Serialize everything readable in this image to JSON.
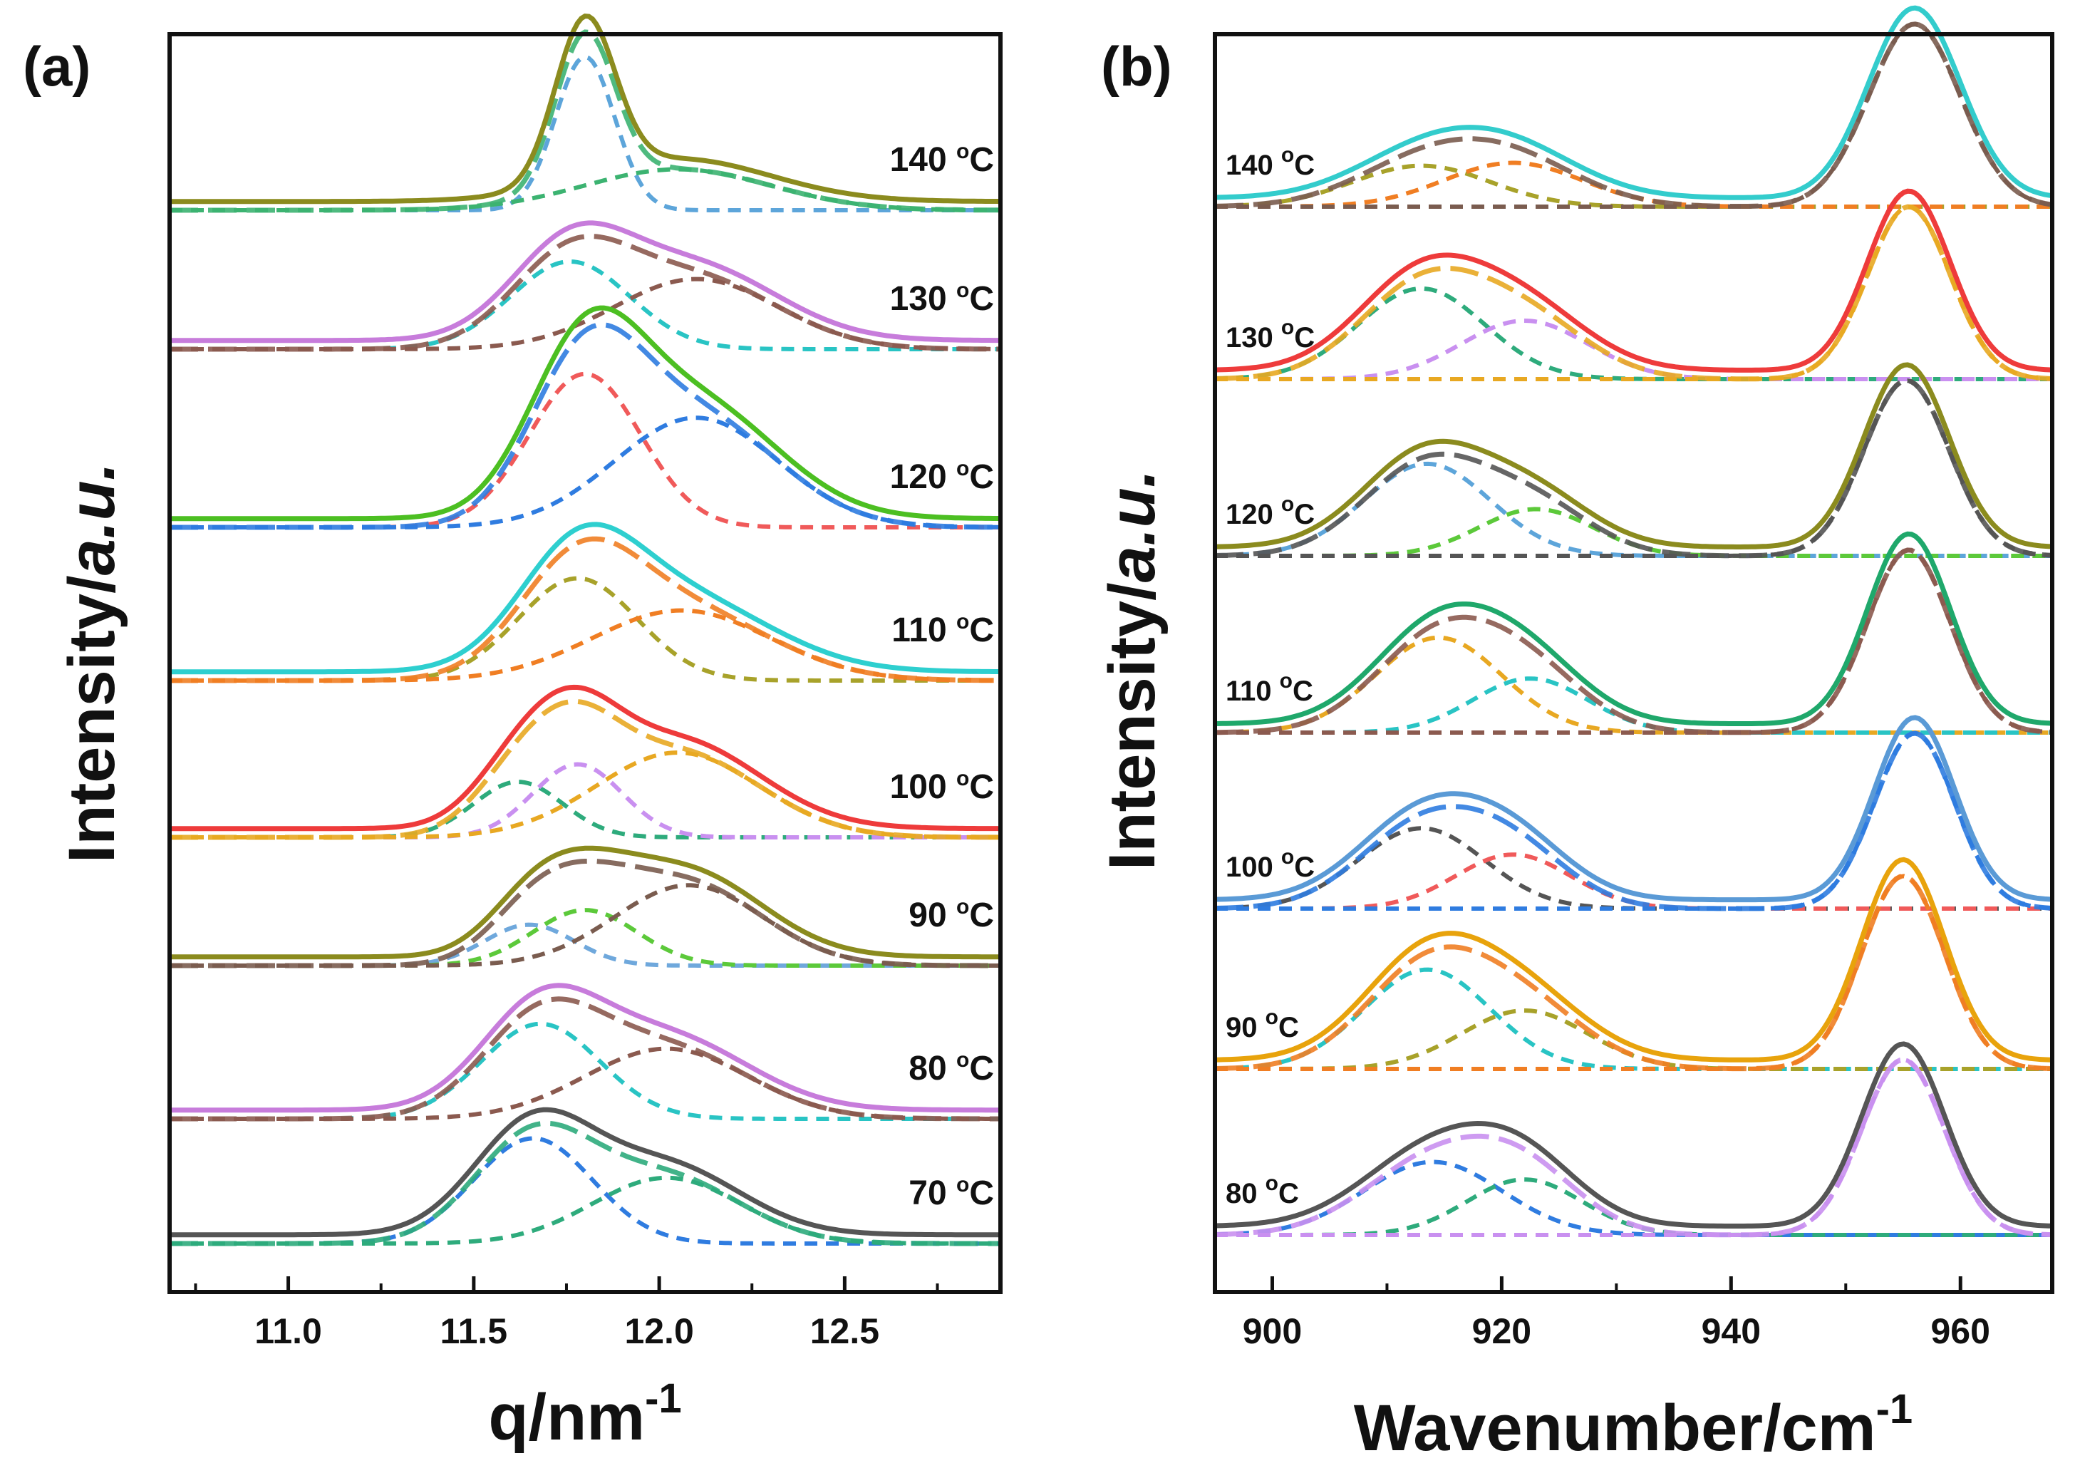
{
  "chart_data": [
    {
      "panel": "(a)",
      "type": "line",
      "xlabel": "q/nm",
      "xlabel_superscript": "-1",
      "ylabel_prefix": "Intensity/",
      "ylabel_italic": "a.u.",
      "xlim": [
        10.68,
        12.92
      ],
      "xticks": [
        "11.0",
        "11.5",
        "12.0",
        "12.5"
      ],
      "xtick_values": [
        11.0,
        11.5,
        12.0,
        12.5
      ],
      "series": [
        {
          "temp": "140",
          "unit": "C",
          "color": "#8B8B1E",
          "baseline": 0.84,
          "components": [
            {
              "center": 11.8,
              "width": 0.08,
              "height": 1.05,
              "color": "#5DA5DA"
            },
            {
              "center": 12.05,
              "width": 0.25,
              "height": 0.28,
              "color": "#3CB371"
            }
          ]
        },
        {
          "temp": "130",
          "unit": "C",
          "color": "#C77CDB",
          "baseline": 0.72,
          "components": [
            {
              "center": 11.76,
              "width": 0.16,
              "height": 0.6,
              "color": "#29C4C4"
            },
            {
              "center": 12.1,
              "width": 0.22,
              "height": 0.48,
              "color": "#8B5A4F"
            }
          ]
        },
        {
          "temp": "120",
          "unit": "C",
          "color": "#4CBF22",
          "baseline": 0.64,
          "components": [
            {
              "center": 11.8,
              "width": 0.15,
              "height": 1.05,
              "color": "#F05A5A"
            },
            {
              "center": 12.1,
              "width": 0.22,
              "height": 0.75,
              "color": "#2F7CE0"
            }
          ]
        },
        {
          "temp": "110",
          "unit": "C",
          "color": "#2ECFCF",
          "baseline": 0.5,
          "components": [
            {
              "center": 11.78,
              "width": 0.16,
              "height": 0.7,
              "color": "#A8A22A"
            },
            {
              "center": 12.06,
              "width": 0.24,
              "height": 0.48,
              "color": "#F07E23"
            }
          ]
        },
        {
          "temp": "100",
          "unit": "C",
          "color": "#EE3B3B",
          "baseline": 0.5,
          "components": [
            {
              "center": 11.62,
              "width": 0.12,
              "height": 0.38,
              "color": "#2EAB7C"
            },
            {
              "center": 11.78,
              "width": 0.12,
              "height": 0.5,
              "color": "#C990F0"
            },
            {
              "center": 12.05,
              "width": 0.22,
              "height": 0.58,
              "color": "#E8A822"
            }
          ]
        },
        {
          "temp": "90",
          "unit": "C",
          "color": "#8B8B1E",
          "baseline": 0.5,
          "components": [
            {
              "center": 11.65,
              "width": 0.12,
              "height": 0.28,
              "color": "#6FA8DC"
            },
            {
              "center": 11.8,
              "width": 0.14,
              "height": 0.38,
              "color": "#5CC93A"
            },
            {
              "center": 12.08,
              "width": 0.2,
              "height": 0.55,
              "color": "#7A5C4F"
            }
          ]
        },
        {
          "temp": "80",
          "unit": "C",
          "color": "#C77CDB",
          "baseline": 0.42,
          "components": [
            {
              "center": 11.68,
              "width": 0.16,
              "height": 0.65,
              "color": "#29C4C4"
            },
            {
              "center": 12.02,
              "width": 0.22,
              "height": 0.48,
              "color": "#8B5A4F"
            }
          ]
        },
        {
          "temp": "70",
          "unit": "C",
          "color": "#555555",
          "baseline": 0.48,
          "components": [
            {
              "center": 11.66,
              "width": 0.16,
              "height": 0.72,
              "color": "#2F7CE0"
            },
            {
              "center": 12.02,
              "width": 0.2,
              "height": 0.45,
              "color": "#2EAB7C"
            }
          ]
        }
      ]
    },
    {
      "panel": "(b)",
      "type": "line",
      "xlabel": "Wavenumber/cm",
      "xlabel_superscript": "-1",
      "ylabel_prefix": "Intensity/",
      "ylabel_italic": "a.u.",
      "xlim": [
        895,
        968
      ],
      "xticks": [
        "900",
        "920",
        "940",
        "960"
      ],
      "xtick_values": [
        900,
        920,
        940,
        960
      ],
      "series": [
        {
          "temp": "140",
          "unit": "C",
          "color": "#33CCCC",
          "baseline": 0.3,
          "components": [
            {
              "center": 913,
              "width": 6,
              "height": 0.28,
              "color": "#A8A22A"
            },
            {
              "center": 921,
              "width": 6,
              "height": 0.3,
              "color": "#F07E23"
            },
            {
              "center": 956,
              "width": 4,
              "height": 1.25,
              "color": "#7A5C4F"
            }
          ]
        },
        {
          "temp": "130",
          "unit": "C",
          "color": "#EE3B3B",
          "baseline": 0.3,
          "components": [
            {
              "center": 913,
              "width": 5.5,
              "height": 0.62,
              "color": "#2EAB7C"
            },
            {
              "center": 922,
              "width": 5.5,
              "height": 0.4,
              "color": "#C990F0"
            },
            {
              "center": 955.5,
              "width": 3.6,
              "height": 1.18,
              "color": "#E8A822"
            }
          ]
        },
        {
          "temp": "120",
          "unit": "C",
          "color": "#8B8B1E",
          "baseline": 0.3,
          "components": [
            {
              "center": 913.5,
              "width": 5.5,
              "height": 0.63,
              "color": "#5DA5DA"
            },
            {
              "center": 923,
              "width": 5,
              "height": 0.32,
              "color": "#5CC93A"
            },
            {
              "center": 955.3,
              "width": 3.7,
              "height": 1.2,
              "color": "#555555"
            }
          ]
        },
        {
          "temp": "110",
          "unit": "C",
          "color": "#1FA86B",
          "baseline": 0.3,
          "components": [
            {
              "center": 914.5,
              "width": 5.5,
              "height": 0.65,
              "color": "#E8A822"
            },
            {
              "center": 922.5,
              "width": 5,
              "height": 0.37,
              "color": "#29C4C4"
            },
            {
              "center": 955.5,
              "width": 3.6,
              "height": 1.25,
              "color": "#8B5A4F"
            }
          ]
        },
        {
          "temp": "100",
          "unit": "C",
          "color": "#5A9AD6",
          "baseline": 0.3,
          "components": [
            {
              "center": 913,
              "width": 5.5,
              "height": 0.55,
              "color": "#555555"
            },
            {
              "center": 921,
              "width": 5,
              "height": 0.37,
              "color": "#F05A5A"
            },
            {
              "center": 956,
              "width": 3.5,
              "height": 1.2,
              "color": "#2F7CE0"
            }
          ]
        },
        {
          "temp": "90",
          "unit": "C",
          "color": "#E8A30C",
          "baseline": 0.3,
          "components": [
            {
              "center": 913.5,
              "width": 5.5,
              "height": 0.68,
              "color": "#29C4C4"
            },
            {
              "center": 922,
              "width": 5.5,
              "height": 0.4,
              "color": "#A8A22A"
            },
            {
              "center": 955,
              "width": 3.6,
              "height": 1.32,
              "color": "#F07E23"
            }
          ]
        },
        {
          "temp": "80",
          "unit": "C",
          "color": "#555555",
          "baseline": 0.3,
          "components": [
            {
              "center": 914,
              "width": 6,
              "height": 0.5,
              "color": "#2F7CE0"
            },
            {
              "center": 922,
              "width": 5,
              "height": 0.38,
              "color": "#2EAB7C"
            },
            {
              "center": 955,
              "width": 3.6,
              "height": 1.2,
              "color": "#C990F0"
            }
          ]
        }
      ]
    }
  ]
}
